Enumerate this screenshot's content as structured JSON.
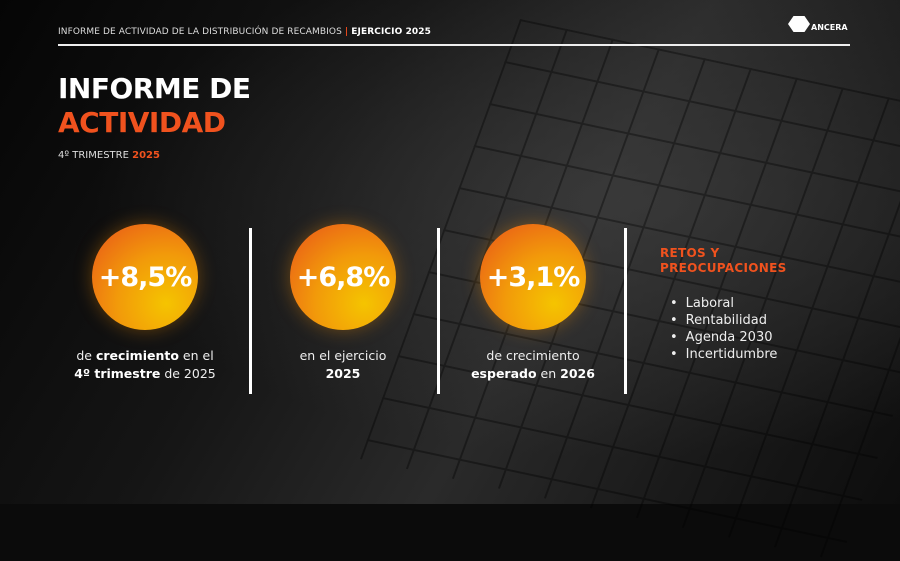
{
  "header": {
    "title": "INFORME DE ACTIVIDAD DE LA DISTRIBUCIÓN DE RECAMBIOS",
    "separator": "|",
    "highlight": "EJERCICIO 2025"
  },
  "logo": {
    "text": "ANCERA"
  },
  "title": {
    "line1": "INFORME DE",
    "line2": "ACTIVIDAD"
  },
  "subtitle": {
    "text": "4º TRIMESTRE",
    "year": "2025"
  },
  "colors": {
    "accent": "#f0521e",
    "circle_inner": "#f5c400",
    "circle_outer": "#e8521a"
  },
  "kpis": [
    {
      "value": "+8,5%",
      "cap": [
        "de ",
        "crecimiento",
        " en el",
        "4º trimestre",
        " de 2025"
      ]
    },
    {
      "value": "+6,8%",
      "cap": [
        "en el ejercicio",
        "2025"
      ]
    },
    {
      "value": "+3,1%",
      "cap": [
        "de crecimiento",
        "esperado",
        " en ",
        "2026"
      ]
    }
  ],
  "retos": {
    "title_line1": "RETOS Y",
    "title_line2": "PREOCUPACIONES",
    "items": [
      "Laboral",
      "Rentabilidad",
      "Agenda 2030",
      "Incertidumbre"
    ]
  }
}
